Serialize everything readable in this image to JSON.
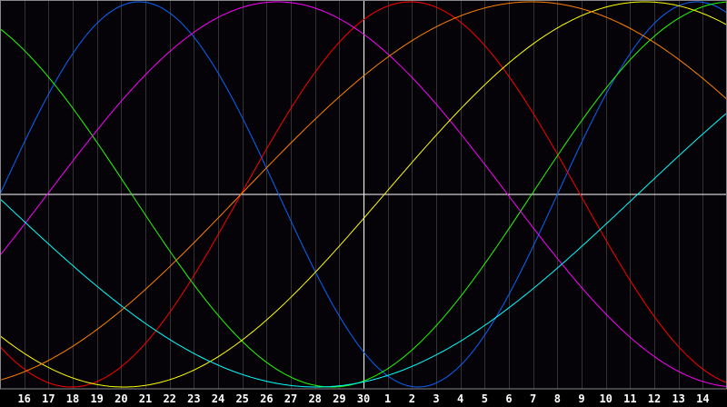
{
  "chart_data": {
    "type": "line",
    "title": "",
    "xlabel": "",
    "ylabel": "",
    "x_range_days": [
      15,
      45
    ],
    "y_range": [
      -1,
      1
    ],
    "grid": true,
    "tick_labels": [
      "16",
      "17",
      "18",
      "19",
      "20",
      "21",
      "22",
      "23",
      "24",
      "25",
      "26",
      "27",
      "28",
      "29",
      "30",
      "1",
      "2",
      "3",
      "4",
      "5",
      "6",
      "7",
      "8",
      "9",
      "10",
      "11",
      "12",
      "13",
      "14"
    ],
    "tick_days": [
      16,
      17,
      18,
      19,
      20,
      21,
      22,
      23,
      24,
      25,
      26,
      27,
      28,
      29,
      30,
      31,
      32,
      33,
      34,
      35,
      36,
      37,
      38,
      39,
      40,
      41,
      42,
      43,
      44
    ],
    "center_marker_day": 30,
    "series": [
      {
        "color": "#0a64ff",
        "period_days": 23,
        "rising_zero_day": 15.0
      },
      {
        "color": "#ff0000",
        "period_days": 28,
        "rising_zero_day": 24.94
      },
      {
        "color": "#22ff00",
        "period_days": 33,
        "rising_zero_day": 36.94
      },
      {
        "color": "#ff00ff",
        "period_days": 38,
        "rising_zero_day": 16.95
      },
      {
        "color": "#ffff00",
        "period_days": 43,
        "rising_zero_day": 30.86
      },
      {
        "color": "#ff8000",
        "period_days": 48,
        "rising_zero_day": 24.94
      },
      {
        "color": "#00ffff",
        "period_days": 53,
        "rising_zero_day": 41.31
      }
    ]
  },
  "colors": {
    "background": "#050307",
    "grid": "#333333",
    "axis": "#ffffff",
    "frame": "#888888"
  }
}
